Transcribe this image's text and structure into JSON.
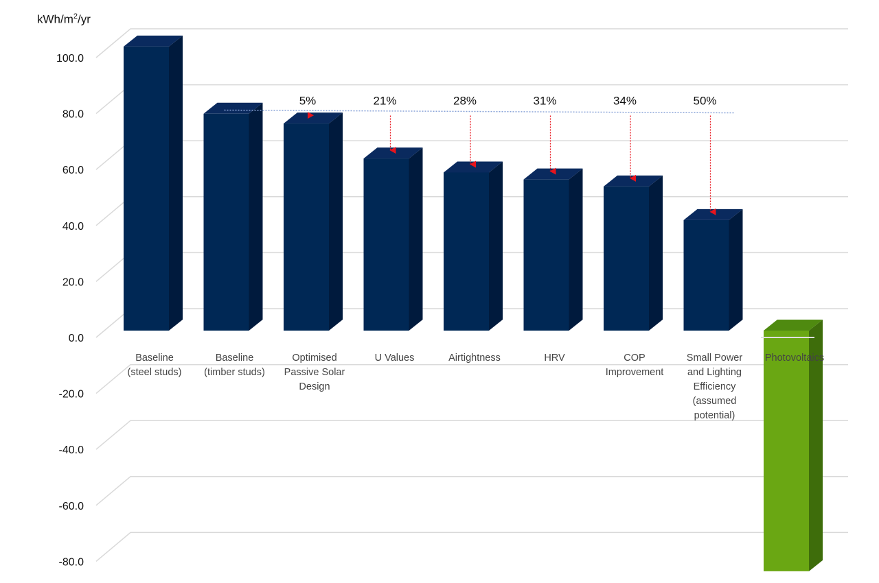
{
  "chart_data": {
    "type": "bar",
    "ylabel": "kWh/m²/yr",
    "ylim": [
      -80,
      100
    ],
    "y_ticks": [
      "100.0",
      "80.0",
      "60.0",
      "40.0",
      "20.0",
      "0.0",
      "-20.0",
      "-40.0",
      "-60.0",
      "-80.0"
    ],
    "categories": [
      [
        "Baseline",
        "(steel studs)"
      ],
      [
        "Baseline",
        "(timber studs)"
      ],
      [
        "Optimised",
        "Passive Solar",
        "Design"
      ],
      [
        "U Values"
      ],
      [
        "Airtightness"
      ],
      [
        "HRV"
      ],
      [
        "COP",
        "Improvement"
      ],
      [
        "Small Power",
        "and Lighting",
        "Efficiency",
        "(assumed",
        "potential)"
      ],
      [
        "Photovoltaics"
      ]
    ],
    "values": [
      101.5,
      77.5,
      74,
      61.5,
      56.5,
      54,
      51.5,
      39.5,
      -86
    ],
    "reduction_labels": [
      "",
      "",
      "5%",
      "21%",
      "28%",
      "31%",
      "34%",
      "50%",
      ""
    ],
    "reference_line_value": 80.5,
    "colors": {
      "bar": "#002855",
      "bar_positive_last": "#6aa713",
      "arrow": "#e8141c",
      "reference_line": "#8aa4d8",
      "grid": "#d9d9d9"
    },
    "grid": true,
    "legend": "none"
  }
}
